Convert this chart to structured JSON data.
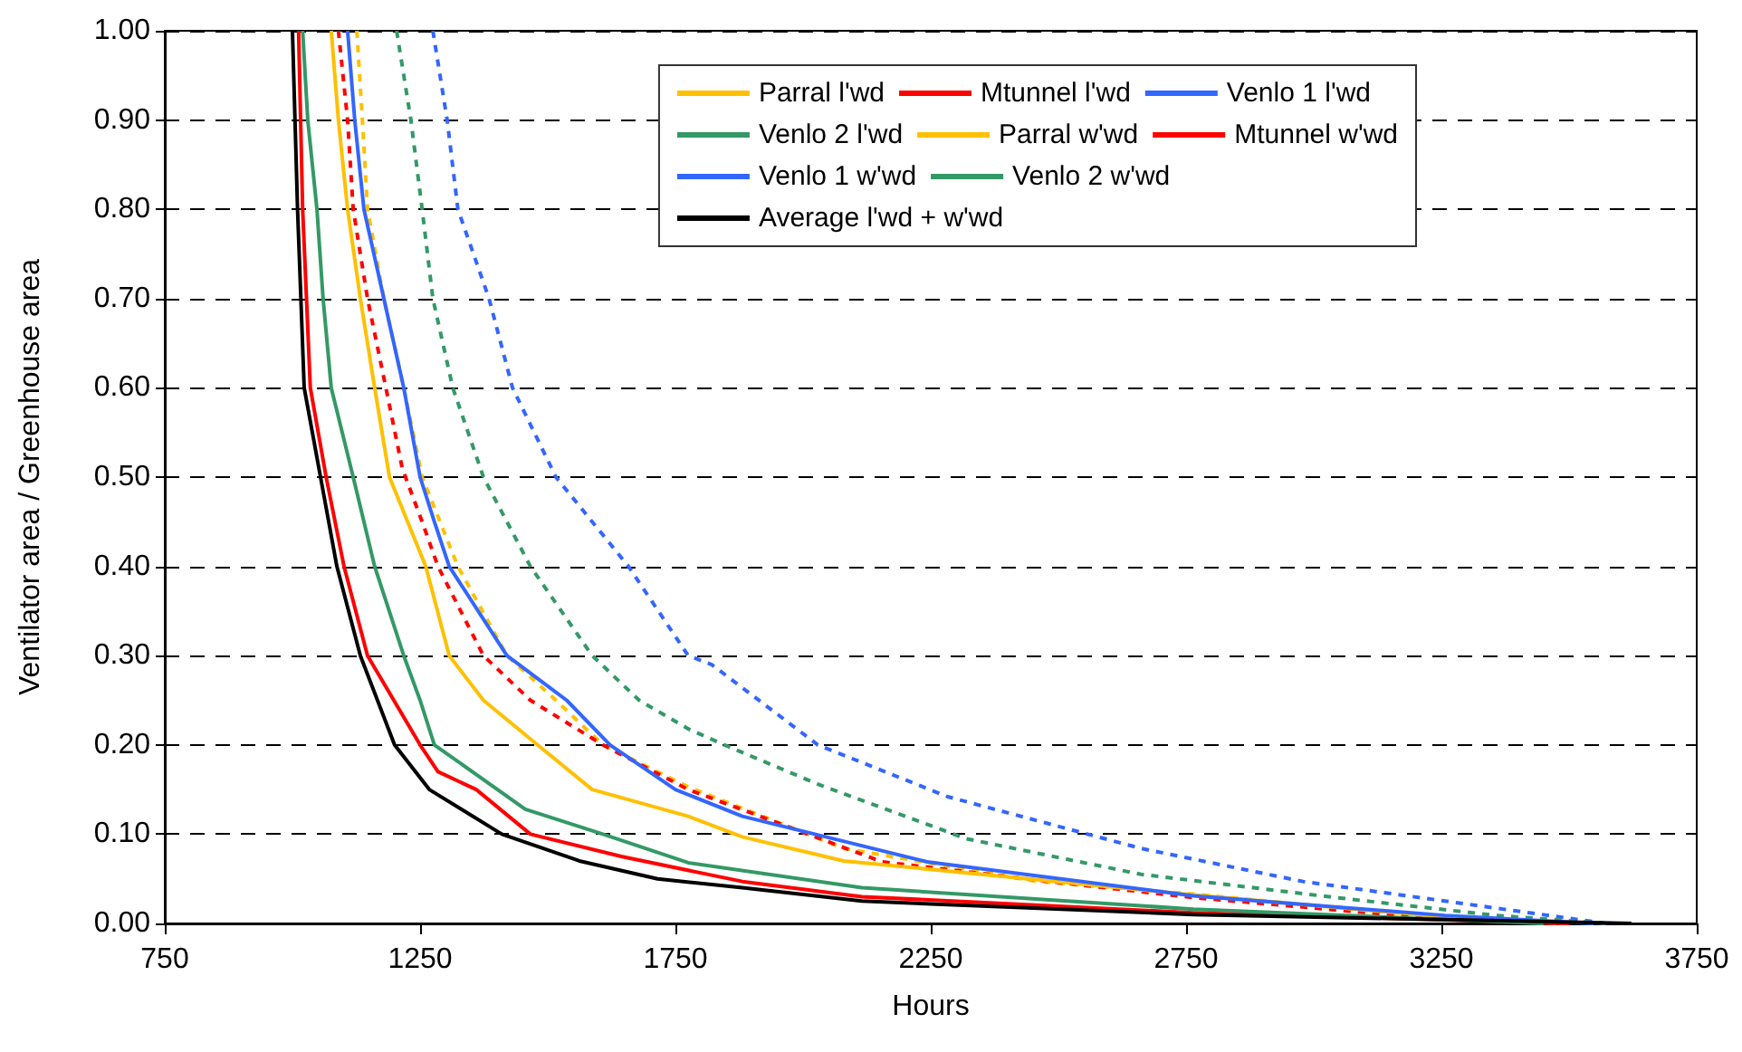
{
  "chart_data": {
    "type": "line",
    "xlabel": "Hours",
    "ylabel": "Ventilator area / Greenhouse area",
    "xlim": [
      750,
      3750
    ],
    "xticks": [
      750,
      1250,
      1750,
      2250,
      2750,
      3250,
      3750
    ],
    "ylim": [
      0,
      1
    ],
    "yticks": [
      {
        "value": 0,
        "label": "0.00"
      },
      {
        "value": 0.1,
        "label": "0.10"
      },
      {
        "value": 0.2,
        "label": "0.20"
      },
      {
        "value": 0.3,
        "label": "0.30"
      },
      {
        "value": 0.4,
        "label": "0.40"
      },
      {
        "value": 0.5,
        "label": "0.50"
      },
      {
        "value": 0.6,
        "label": "0.60"
      },
      {
        "value": 0.7,
        "label": "0.70"
      },
      {
        "value": 0.8,
        "label": "0.80"
      },
      {
        "value": 0.9,
        "label": "0.90"
      },
      {
        "value": 1,
        "label": "1.00"
      }
    ],
    "grid": "y",
    "legend": "top right",
    "marker": "none",
    "series": [
      {
        "name": "Parral l'wd",
        "color": "#ffc000",
        "line_style": "dashed",
        "x": [
          1126,
          1137,
          1147,
          1179,
          1218,
          1254,
          1324,
          1420,
          1516,
          1608,
          1775,
          2080,
          2459,
          2764,
          3168,
          3484
        ],
        "values": [
          1,
          0.9,
          0.8,
          0.7,
          0.6,
          0.5,
          0.4,
          0.3,
          0.25,
          0.2,
          0.153,
          0.084,
          0.047,
          0.033,
          0.011,
          0
        ]
      },
      {
        "name": "Mtunnel l'wd",
        "color": "#ff0000",
        "line_style": "dashed",
        "x": [
          1090,
          1108,
          1119,
          1147,
          1183,
          1215,
          1254,
          1285,
          1374,
          1466,
          1608,
          1775,
          2155,
          2483,
          2764,
          3168,
          3484
        ],
        "values": [
          1,
          0.9,
          0.8,
          0.7,
          0.6,
          0.51,
          0.45,
          0.4,
          0.3,
          0.25,
          0.2,
          0.15,
          0.069,
          0.047,
          0.029,
          0.009,
          0
        ]
      },
      {
        "name": "Venlo 1 l'wd",
        "color": "#3366ff",
        "line_style": "dashed",
        "x": [
          1275,
          1303,
          1324,
          1385,
          1431,
          1516,
          1658,
          1775,
          1821,
          2029,
          2283,
          2662,
          2979,
          3296,
          3573
        ],
        "values": [
          1,
          0.9,
          0.8,
          0.7,
          0.6,
          0.5,
          0.4,
          0.3,
          0.29,
          0.2,
          0.142,
          0.084,
          0.047,
          0.022,
          0
        ]
      },
      {
        "name": "Venlo 2 l'wd",
        "color": "#339966",
        "line_style": "dashed",
        "x": [
          1204,
          1232,
          1254,
          1275,
          1314,
          1374,
          1466,
          1587,
          1679,
          1775,
          1846,
          2029,
          2319,
          2662,
          3043,
          3357,
          3573
        ],
        "values": [
          1,
          0.9,
          0.8,
          0.7,
          0.6,
          0.5,
          0.4,
          0.3,
          0.25,
          0.218,
          0.2,
          0.156,
          0.095,
          0.055,
          0.029,
          0.009,
          0
        ]
      },
      {
        "name": "Parral w'wd",
        "color": "#ffc000",
        "line_style": "solid",
        "x": [
          1076,
          1090,
          1108,
          1133,
          1161,
          1190,
          1261,
          1307,
          1374,
          1480,
          1587,
          1775,
          1881,
          2080,
          2764,
          3243,
          3500
        ],
        "values": [
          1,
          0.9,
          0.8,
          0.7,
          0.6,
          0.5,
          0.4,
          0.3,
          0.25,
          0.2,
          0.15,
          0.12,
          0.097,
          0.07,
          0.032,
          0.008,
          0
        ]
      },
      {
        "name": "Mtunnel w'wd",
        "color": "#ff0000",
        "line_style": "solid",
        "x": [
          1012,
          1020,
          1035,
          1066,
          1101,
          1147,
          1250,
          1285,
          1360,
          1466,
          1644,
          1881,
          2115,
          2764,
          3500
        ],
        "values": [
          1,
          0.8,
          0.6,
          0.5,
          0.4,
          0.3,
          0.2,
          0.17,
          0.15,
          0.1,
          0.075,
          0.047,
          0.03,
          0.012,
          0
        ]
      },
      {
        "name": "Venlo 1 w'wd",
        "color": "#3366ff",
        "line_style": "solid",
        "x": [
          1108,
          1122,
          1140,
          1179,
          1218,
          1250,
          1278,
          1307,
          1420,
          1537,
          1622,
          1750,
          1881,
          2243,
          2764,
          3257,
          3548
        ],
        "values": [
          1,
          0.9,
          0.8,
          0.7,
          0.6,
          0.5,
          0.45,
          0.4,
          0.3,
          0.25,
          0.2,
          0.15,
          0.12,
          0.069,
          0.031,
          0.009,
          0
        ]
      },
      {
        "name": "Venlo 2 w'wd",
        "color": "#339966",
        "line_style": "solid",
        "x": [
          1020,
          1030,
          1048,
          1060,
          1076,
          1119,
          1161,
          1218,
          1250,
          1278,
          1456,
          1608,
          1775,
          2115,
          2764,
          3450
        ],
        "values": [
          1,
          0.9,
          0.8,
          0.7,
          0.6,
          0.5,
          0.4,
          0.3,
          0.25,
          0.2,
          0.128,
          0.1,
          0.068,
          0.04,
          0.016,
          0
        ]
      },
      {
        "name": "Average l'wd + w'wd",
        "color": "#000000",
        "line_style": "solid",
        "x": [
          1000,
          1010,
          1023,
          1055,
          1087,
          1133,
          1200,
          1268,
          1410,
          1562,
          1715,
          1881,
          2115,
          2764,
          3622
        ],
        "values": [
          1,
          0.8,
          0.6,
          0.5,
          0.4,
          0.3,
          0.2,
          0.15,
          0.1,
          0.07,
          0.05,
          0.04,
          0.025,
          0.01,
          0
        ]
      }
    ]
  }
}
